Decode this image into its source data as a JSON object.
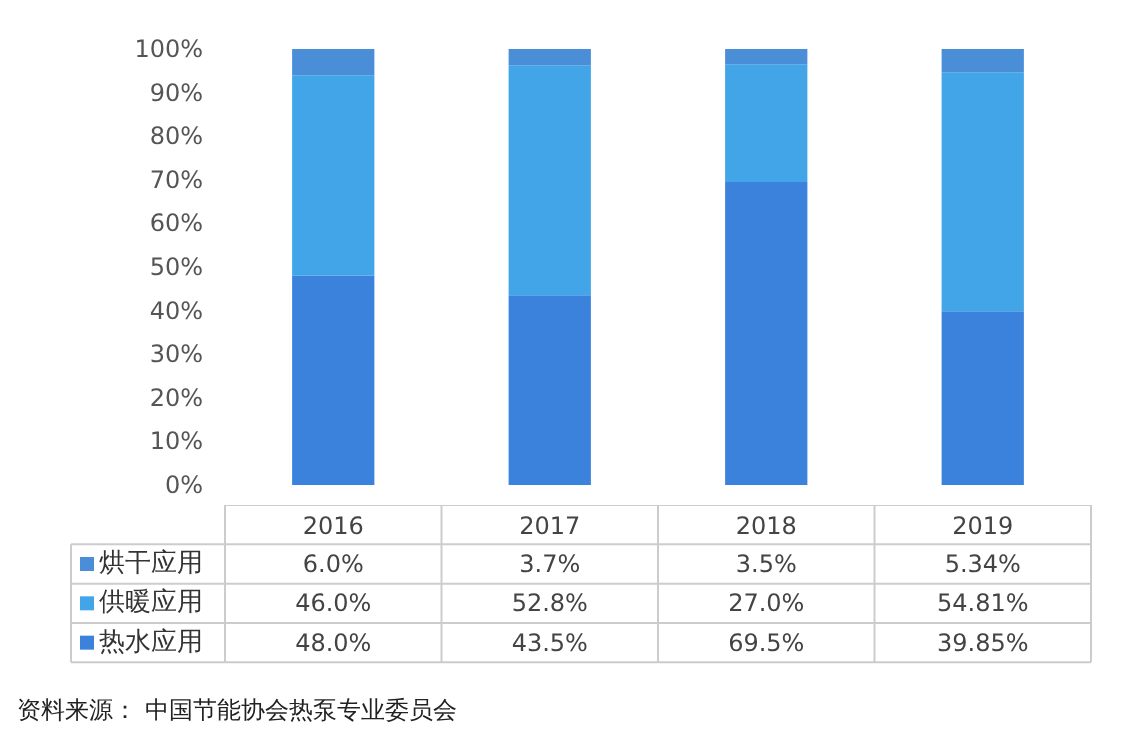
{
  "chart_data": {
    "type": "bar",
    "stacked": true,
    "categories": [
      "2016",
      "2017",
      "2018",
      "2019"
    ],
    "series": [
      {
        "name": "热水应用",
        "color": "#3b82dc",
        "values": [
          48.0,
          43.5,
          69.5,
          39.85
        ],
        "value_labels": [
          "48.0%",
          "43.5%",
          "69.5%",
          "39.85%"
        ]
      },
      {
        "name": "供暖应用",
        "color": "#42a5e8",
        "values": [
          46.0,
          52.8,
          27.0,
          54.81
        ],
        "value_labels": [
          "46.0%",
          "52.8%",
          "27.0%",
          "54.81%"
        ]
      },
      {
        "name": "烘干应用",
        "color": "#4a8ed8",
        "values": [
          6.0,
          3.7,
          3.5,
          5.34
        ],
        "value_labels": [
          "6.0%",
          "3.7%",
          "3.5%",
          "5.34%"
        ]
      }
    ],
    "ylim": [
      0,
      100
    ],
    "yticks": [
      {
        "value": 0,
        "label": "0%"
      },
      {
        "value": 10,
        "label": "10%"
      },
      {
        "value": 20,
        "label": "20%"
      },
      {
        "value": 30,
        "label": "30%"
      },
      {
        "value": 40,
        "label": "40%"
      },
      {
        "value": 50,
        "label": "50%"
      },
      {
        "value": 60,
        "label": "60%"
      },
      {
        "value": 70,
        "label": "70%"
      },
      {
        "value": 80,
        "label": "80%"
      },
      {
        "value": 90,
        "label": "90%"
      },
      {
        "value": 100,
        "label": "100%"
      }
    ],
    "grid": false,
    "legend": "bottom",
    "annotations": [
      "资料来源： 中国节能协会热泵专业委员会"
    ]
  }
}
